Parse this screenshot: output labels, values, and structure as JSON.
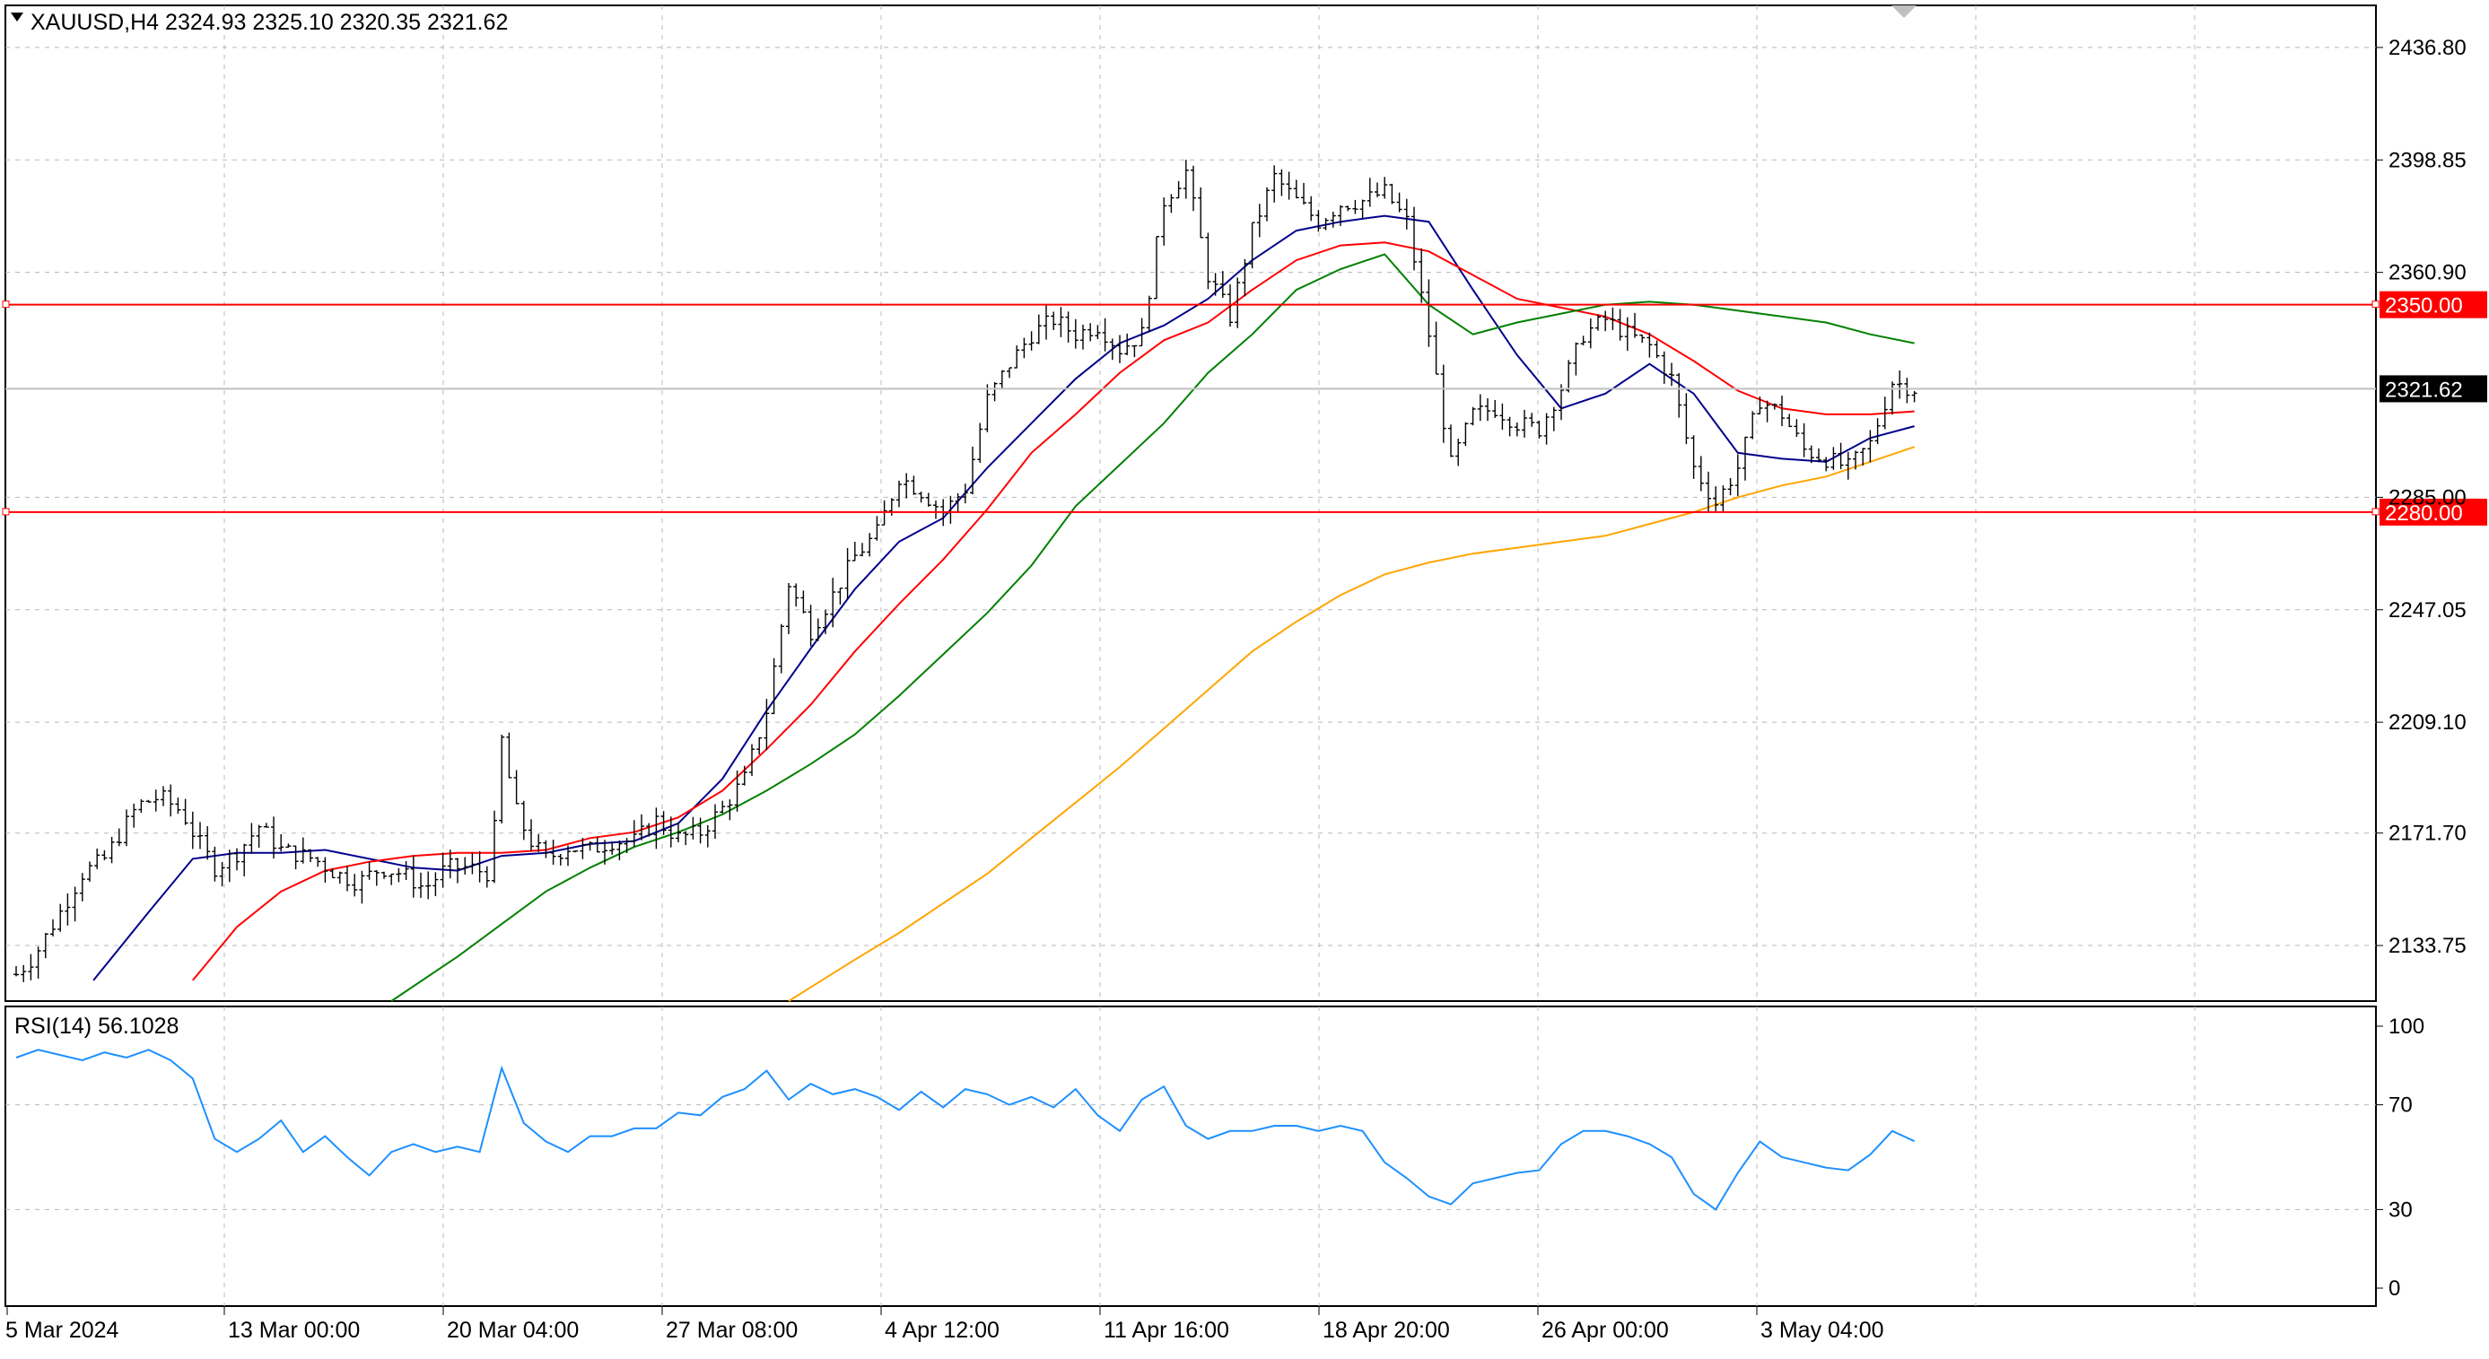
{
  "chart_data": [
    {
      "type": "candlestick",
      "symbol_header": "XAUUSD,H4  2324.93 2325.10 2320.35 2321.62",
      "ohlc": {
        "open": 2324.93,
        "high": 2325.1,
        "low": 2320.35,
        "close": 2321.62
      },
      "ylim": [
        2115,
        2451
      ],
      "y_ticks": [
        "2436.80",
        "2398.85",
        "2360.90",
        "2285.00",
        "2247.05",
        "2209.10",
        "2171.70",
        "2133.75"
      ],
      "horizontal_levels": [
        {
          "value": 2350.0,
          "label": "2350.00",
          "color": "#ff0000"
        },
        {
          "value": 2280.0,
          "label": "2280.00",
          "color": "#ff0000"
        }
      ],
      "current_price": {
        "value": 2321.62,
        "label": "2321.62"
      },
      "x_labels": [
        "5 Mar 2024",
        "13 Mar 00:00",
        "20 Mar 04:00",
        "27 Mar 08:00",
        "4 Apr 12:00",
        "11 Apr 16:00",
        "18 Apr 20:00",
        "26 Apr 00:00",
        "3 May 04:00"
      ],
      "close_path": [
        [
          0,
          2124
        ],
        [
          0.8,
          2130
        ],
        [
          2,
          2145
        ],
        [
          3,
          2158
        ],
        [
          4,
          2163
        ],
        [
          5.5,
          2181
        ],
        [
          6.5,
          2184
        ],
        [
          7.5,
          2179
        ],
        [
          8,
          2172
        ],
        [
          9,
          2160
        ],
        [
          10,
          2165
        ],
        [
          11,
          2174
        ],
        [
          12,
          2166
        ],
        [
          13.5,
          2163
        ],
        [
          14.5,
          2158
        ],
        [
          15.5,
          2155
        ],
        [
          16.5,
          2160
        ],
        [
          17.5,
          2158
        ],
        [
          18.5,
          2153
        ],
        [
          19.5,
          2160
        ],
        [
          20.5,
          2160
        ],
        [
          21.5,
          2158
        ],
        [
          22,
          2203
        ],
        [
          22.6,
          2180
        ],
        [
          23.2,
          2170
        ],
        [
          24,
          2163
        ],
        [
          25,
          2167
        ],
        [
          26,
          2166
        ],
        [
          27,
          2169
        ],
        [
          28,
          2169
        ],
        [
          29,
          2176
        ],
        [
          30,
          2170
        ],
        [
          31,
          2172
        ],
        [
          32,
          2180
        ],
        [
          33,
          2190
        ],
        [
          34,
          2213
        ],
        [
          35,
          2256
        ],
        [
          36,
          2240
        ],
        [
          37,
          2252
        ],
        [
          38,
          2265
        ],
        [
          39,
          2273
        ],
        [
          40,
          2292
        ],
        [
          41,
          2287
        ],
        [
          42,
          2280
        ],
        [
          43,
          2288
        ],
        [
          44,
          2318
        ],
        [
          45,
          2330
        ],
        [
          46,
          2340
        ],
        [
          47,
          2345
        ],
        [
          48,
          2340
        ],
        [
          49,
          2343
        ],
        [
          50,
          2335
        ],
        [
          51,
          2340
        ],
        [
          52,
          2385
        ],
        [
          53,
          2395
        ],
        [
          54,
          2360
        ],
        [
          55,
          2346
        ],
        [
          56,
          2375
        ],
        [
          57,
          2393
        ],
        [
          58,
          2385
        ],
        [
          59,
          2378
        ],
        [
          60,
          2384
        ],
        [
          61,
          2385
        ],
        [
          62,
          2388
        ],
        [
          63,
          2378
        ],
        [
          64,
          2340
        ],
        [
          65,
          2296
        ],
        [
          66,
          2313
        ],
        [
          67,
          2315
        ],
        [
          68,
          2310
        ],
        [
          69,
          2308
        ],
        [
          70,
          2322
        ],
        [
          71,
          2340
        ],
        [
          72,
          2345
        ],
        [
          73,
          2340
        ],
        [
          74,
          2336
        ],
        [
          75,
          2325
        ],
        [
          76,
          2295
        ],
        [
          77,
          2283
        ],
        [
          78,
          2295
        ],
        [
          79,
          2318
        ],
        [
          80,
          2313
        ],
        [
          81,
          2301
        ],
        [
          82,
          2298
        ],
        [
          83,
          2295
        ],
        [
          84,
          2303
        ],
        [
          85,
          2324
        ],
        [
          86,
          2321.62
        ]
      ],
      "moving_averages": [
        {
          "color": "#00008b",
          "points": [
            [
              3.5,
              2122
            ],
            [
              6,
              2145
            ],
            [
              8,
              2163
            ],
            [
              10,
              2165
            ],
            [
              12,
              2165
            ],
            [
              14,
              2166
            ],
            [
              16,
              2163
            ],
            [
              18,
              2160
            ],
            [
              20,
              2159
            ],
            [
              22,
              2164
            ],
            [
              24,
              2165
            ],
            [
              26,
              2168
            ],
            [
              28,
              2169
            ],
            [
              30,
              2175
            ],
            [
              32,
              2190
            ],
            [
              34,
              2213
            ],
            [
              36,
              2234
            ],
            [
              38,
              2254
            ],
            [
              40,
              2270
            ],
            [
              42,
              2278
            ],
            [
              44,
              2295
            ],
            [
              46,
              2310
            ],
            [
              48,
              2325
            ],
            [
              50,
              2337
            ],
            [
              52,
              2343
            ],
            [
              54,
              2352
            ],
            [
              56,
              2365
            ],
            [
              58,
              2375
            ],
            [
              60,
              2378
            ],
            [
              62,
              2380
            ],
            [
              64,
              2378
            ],
            [
              66,
              2355
            ],
            [
              68,
              2333
            ],
            [
              70,
              2315
            ],
            [
              72,
              2320
            ],
            [
              74,
              2330
            ],
            [
              76,
              2320
            ],
            [
              78,
              2300
            ],
            [
              80,
              2298
            ],
            [
              82,
              2297
            ],
            [
              84,
              2305
            ],
            [
              86,
              2309
            ]
          ]
        },
        {
          "color": "#ff0000",
          "points": [
            [
              8,
              2122
            ],
            [
              10,
              2140
            ],
            [
              12,
              2152
            ],
            [
              14,
              2159
            ],
            [
              16,
              2162
            ],
            [
              18,
              2164
            ],
            [
              20,
              2165
            ],
            [
              22,
              2165
            ],
            [
              24,
              2166
            ],
            [
              26,
              2170
            ],
            [
              28,
              2172
            ],
            [
              30,
              2177
            ],
            [
              32,
              2186
            ],
            [
              34,
              2200
            ],
            [
              36,
              2215
            ],
            [
              38,
              2233
            ],
            [
              40,
              2249
            ],
            [
              42,
              2264
            ],
            [
              44,
              2281
            ],
            [
              46,
              2300
            ],
            [
              48,
              2313
            ],
            [
              50,
              2327
            ],
            [
              52,
              2338
            ],
            [
              54,
              2344
            ],
            [
              56,
              2355
            ],
            [
              58,
              2365
            ],
            [
              60,
              2370
            ],
            [
              62,
              2371
            ],
            [
              64,
              2368
            ],
            [
              66,
              2360
            ],
            [
              68,
              2352
            ],
            [
              70,
              2349
            ],
            [
              72,
              2346
            ],
            [
              74,
              2340
            ],
            [
              76,
              2331
            ],
            [
              78,
              2321
            ],
            [
              80,
              2315
            ],
            [
              82,
              2313
            ],
            [
              84,
              2313
            ],
            [
              86,
              2314
            ]
          ]
        },
        {
          "color": "#008000",
          "points": [
            [
              17,
              2115
            ],
            [
              20,
              2130
            ],
            [
              22,
              2141
            ],
            [
              24,
              2152
            ],
            [
              26,
              2160
            ],
            [
              28,
              2167
            ],
            [
              30,
              2172
            ],
            [
              32,
              2178
            ],
            [
              34,
              2186
            ],
            [
              36,
              2195
            ],
            [
              38,
              2205
            ],
            [
              40,
              2218
            ],
            [
              42,
              2232
            ],
            [
              44,
              2246
            ],
            [
              46,
              2262
            ],
            [
              48,
              2282
            ],
            [
              50,
              2296
            ],
            [
              52,
              2310
            ],
            [
              54,
              2327
            ],
            [
              56,
              2340
            ],
            [
              58,
              2355
            ],
            [
              60,
              2362
            ],
            [
              62,
              2367
            ],
            [
              64,
              2350
            ],
            [
              66,
              2340
            ],
            [
              68,
              2344
            ],
            [
              70,
              2347
            ],
            [
              72,
              2350
            ],
            [
              74,
              2351
            ],
            [
              76,
              2350
            ],
            [
              78,
              2348
            ],
            [
              80,
              2346
            ],
            [
              82,
              2344
            ],
            [
              84,
              2340
            ],
            [
              86,
              2337
            ]
          ]
        },
        {
          "color": "#ffa500",
          "points": [
            [
              35,
              2115
            ],
            [
              38,
              2129
            ],
            [
              40,
              2138
            ],
            [
              42,
              2148
            ],
            [
              44,
              2158
            ],
            [
              46,
              2170
            ],
            [
              48,
              2182
            ],
            [
              50,
              2194
            ],
            [
              52,
              2207
            ],
            [
              54,
              2220
            ],
            [
              56,
              2233
            ],
            [
              58,
              2243
            ],
            [
              60,
              2252
            ],
            [
              62,
              2259
            ],
            [
              64,
              2263
            ],
            [
              66,
              2266
            ],
            [
              68,
              2268
            ],
            [
              70,
              2270
            ],
            [
              72,
              2272
            ],
            [
              74,
              2276
            ],
            [
              76,
              2280
            ],
            [
              78,
              2285
            ],
            [
              80,
              2289
            ],
            [
              82,
              2292
            ],
            [
              84,
              2297
            ],
            [
              86,
              2302
            ]
          ]
        }
      ]
    },
    {
      "type": "line",
      "label": "RSI(14) 56.1028",
      "ylim": [
        0,
        100
      ],
      "y_ticks": [
        "100",
        "70",
        "30",
        "0"
      ],
      "x_labels": [
        "5 Mar 2024",
        "13 Mar 00:00",
        "20 Mar 04:00",
        "27 Mar 08:00",
        "4 Apr 12:00",
        "11 Apr 16:00",
        "18 Apr 20:00",
        "26 Apr 00:00",
        "3 May 04:00"
      ],
      "color": "#1e90ff",
      "values": [
        [
          0,
          88
        ],
        [
          1,
          91
        ],
        [
          2,
          89
        ],
        [
          3,
          87
        ],
        [
          4,
          90
        ],
        [
          5,
          88
        ],
        [
          6,
          91
        ],
        [
          7,
          87
        ],
        [
          8,
          80
        ],
        [
          9,
          57
        ],
        [
          10,
          52
        ],
        [
          11,
          57
        ],
        [
          12,
          64
        ],
        [
          13,
          52
        ],
        [
          14,
          58
        ],
        [
          15,
          50
        ],
        [
          16,
          43
        ],
        [
          17,
          52
        ],
        [
          18,
          55
        ],
        [
          19,
          52
        ],
        [
          20,
          54
        ],
        [
          21,
          52
        ],
        [
          22,
          84
        ],
        [
          23,
          63
        ],
        [
          24,
          56
        ],
        [
          25,
          52
        ],
        [
          26,
          58
        ],
        [
          27,
          58
        ],
        [
          28,
          61
        ],
        [
          29,
          61
        ],
        [
          30,
          67
        ],
        [
          31,
          66
        ],
        [
          32,
          73
        ],
        [
          33,
          76
        ],
        [
          34,
          83
        ],
        [
          35,
          72
        ],
        [
          36,
          78
        ],
        [
          37,
          74
        ],
        [
          38,
          76
        ],
        [
          39,
          73
        ],
        [
          40,
          68
        ],
        [
          41,
          75
        ],
        [
          42,
          69
        ],
        [
          43,
          76
        ],
        [
          44,
          74
        ],
        [
          45,
          70
        ],
        [
          46,
          73
        ],
        [
          47,
          69
        ],
        [
          48,
          76
        ],
        [
          49,
          66
        ],
        [
          50,
          60
        ],
        [
          51,
          72
        ],
        [
          52,
          77
        ],
        [
          53,
          62
        ],
        [
          54,
          57
        ],
        [
          55,
          60
        ],
        [
          56,
          60
        ],
        [
          57,
          62
        ],
        [
          58,
          62
        ],
        [
          59,
          60
        ],
        [
          60,
          62
        ],
        [
          61,
          60
        ],
        [
          62,
          48
        ],
        [
          63,
          42
        ],
        [
          64,
          35
        ],
        [
          65,
          32
        ],
        [
          66,
          40
        ],
        [
          67,
          42
        ],
        [
          68,
          44
        ],
        [
          69,
          45
        ],
        [
          70,
          55
        ],
        [
          71,
          60
        ],
        [
          72,
          60
        ],
        [
          73,
          58
        ],
        [
          74,
          55
        ],
        [
          75,
          50
        ],
        [
          76,
          36
        ],
        [
          77,
          30
        ],
        [
          78,
          44
        ],
        [
          79,
          56
        ],
        [
          80,
          50
        ],
        [
          81,
          48
        ],
        [
          82,
          46
        ],
        [
          83,
          45
        ],
        [
          84,
          51
        ],
        [
          85,
          60
        ],
        [
          86,
          56.1
        ]
      ]
    }
  ]
}
